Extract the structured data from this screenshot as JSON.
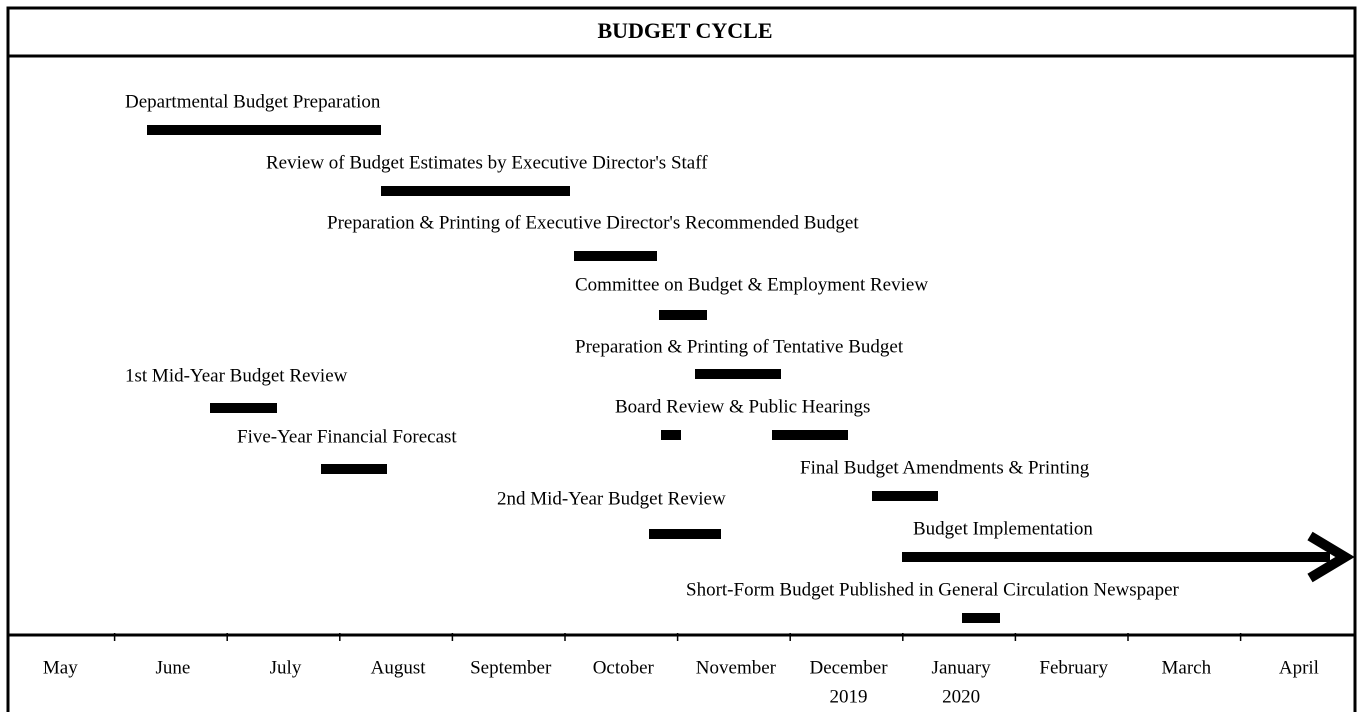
{
  "title": "BUDGET CYCLE",
  "tasks": [
    {
      "label": "Departmental Budget Preparation"
    },
    {
      "label": "Review of Budget Estimates by Executive Director's Staff"
    },
    {
      "label": "Preparation & Printing of Executive Director's Recommended Budget"
    },
    {
      "label": "Committee on Budget & Employment Review"
    },
    {
      "label": "Preparation & Printing of Tentative Budget"
    },
    {
      "label": "1st Mid-Year Budget Review"
    },
    {
      "label": "Board Review & Public Hearings"
    },
    {
      "label": "Five-Year Financial Forecast"
    },
    {
      "label": "Final Budget Amendments & Printing"
    },
    {
      "label": "2nd Mid-Year Budget Review"
    },
    {
      "label": "Budget Implementation"
    },
    {
      "label": "Short-Form Budget Published in General Circulation Newspaper"
    }
  ],
  "months": [
    "May",
    "June",
    "July",
    "August",
    "September",
    "October",
    "November",
    "December",
    "January",
    "February",
    "March",
    "April"
  ],
  "years": [
    {
      "month": 7,
      "label": "2019"
    },
    {
      "month": 8,
      "label": "2020"
    }
  ]
}
